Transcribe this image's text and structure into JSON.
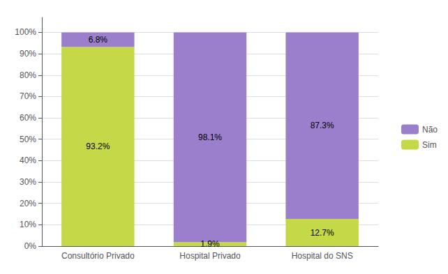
{
  "chart_data": {
    "type": "bar",
    "categories": [
      "Consultório Privado",
      "Hospital Privado",
      "Hospital do SNS"
    ],
    "series": [
      {
        "name": "Sim",
        "color": "#C5D847",
        "values": [
          93.2,
          1.9,
          12.7
        ],
        "value_labels": [
          "93.2%",
          "1.9%",
          "12.7%"
        ]
      },
      {
        "name": "Não",
        "color": "#9B7FCC",
        "values": [
          6.8,
          98.1,
          87.3
        ],
        "value_labels": [
          "6.8%",
          "98.1%",
          "87.3%"
        ]
      }
    ],
    "stacked": true,
    "data_labels": true,
    "ylim": [
      0,
      107
    ],
    "yticks": [
      {
        "value": 0,
        "label": "0%"
      },
      {
        "value": 10,
        "label": "10%"
      },
      {
        "value": 20,
        "label": "20%"
      },
      {
        "value": 30,
        "label": "30%"
      },
      {
        "value": 40,
        "label": "40%"
      },
      {
        "value": 50,
        "label": "50%"
      },
      {
        "value": 60,
        "label": "60%"
      },
      {
        "value": 70,
        "label": "70%"
      },
      {
        "value": 80,
        "label": "80%"
      },
      {
        "value": 90,
        "label": "90%"
      },
      {
        "value": 100,
        "label": "100%"
      }
    ],
    "grid": true,
    "legend": "right"
  }
}
